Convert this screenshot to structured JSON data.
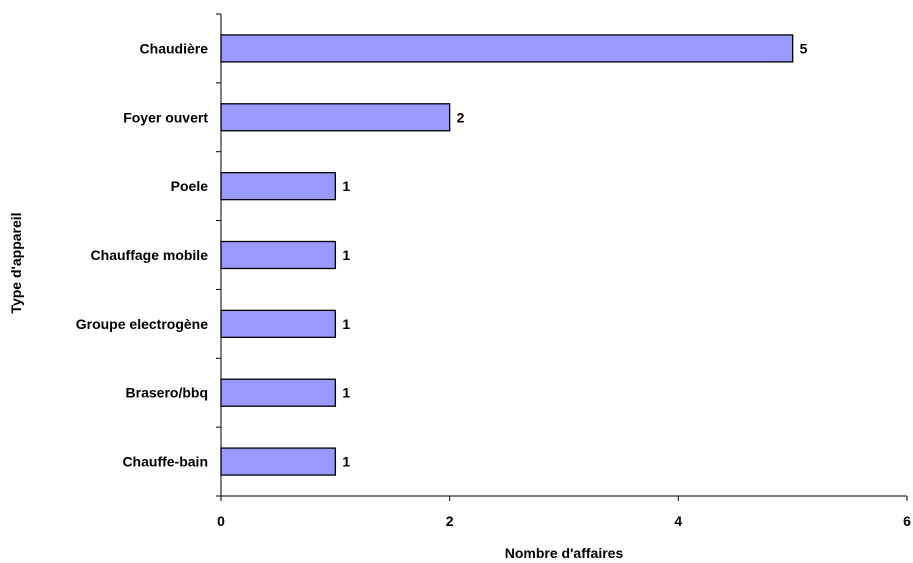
{
  "chart_data": {
    "type": "bar",
    "orientation": "horizontal",
    "categories": [
      "Chaudière",
      "Foyer ouvert",
      "Poele",
      "Chauffage mobile",
      "Groupe electrogène",
      "Brasero/bbq",
      "Chauffe-bain"
    ],
    "values": [
      5,
      2,
      1,
      1,
      1,
      1,
      1
    ],
    "value_labels": [
      "5",
      "2",
      "1",
      "1",
      "1",
      "1",
      "1"
    ],
    "xlabel": "Nombre d'affaires",
    "ylabel": "Type d'appareil",
    "xlim": [
      0,
      6
    ],
    "x_ticks": [
      0,
      2,
      4,
      6
    ],
    "x_tick_labels": [
      "0",
      "2",
      "4",
      "6"
    ],
    "grid": false,
    "legend": false,
    "bar_color": "#9999ff"
  }
}
